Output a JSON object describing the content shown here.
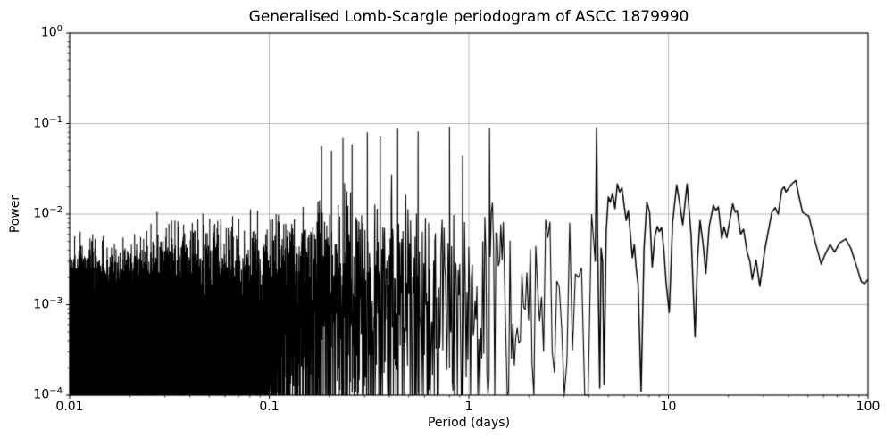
{
  "chart_data": {
    "type": "line",
    "title": "Generalised Lomb-Scargle periodogram of ASCC 1879990",
    "xlabel": "Period (days)",
    "ylabel": "Power",
    "xscale": "log",
    "yscale": "log",
    "xlim": [
      0.01,
      100
    ],
    "ylim": [
      0.0001,
      1
    ],
    "grid": true,
    "legend": "none",
    "line_color": "#000000",
    "grid_color": "#b0b0b0",
    "background_color": "#ffffff",
    "text_color": "#000000",
    "x_ticks": [
      {
        "value": 0.01,
        "label": "0.01"
      },
      {
        "value": 0.1,
        "label": "0.1"
      },
      {
        "value": 1,
        "label": "1"
      },
      {
        "value": 10,
        "label": "10"
      },
      {
        "value": 100,
        "label": "100"
      }
    ],
    "y_ticks": [
      {
        "value": 1,
        "base": "10",
        "exp": "0"
      },
      {
        "value": 0.1,
        "base": "10",
        "exp": "−1"
      },
      {
        "value": 0.01,
        "base": "10",
        "exp": "−2"
      },
      {
        "value": 0.001,
        "base": "10",
        "exp": "−3"
      },
      {
        "value": 0.0001,
        "base": "10",
        "exp": "−4"
      }
    ],
    "noise_region": {
      "description": "Unresolved dense periodogram noise, sampled uniformly in frequency from period_min to period_max; power = envelope * sin^2(random phase) * exponential deviate, clipped at ylim",
      "period_min": 0.01,
      "period_max": 4.3,
      "samples": 10000,
      "seed": 20,
      "mean_envelope": [
        [
          0.01,
          0.0011
        ],
        [
          0.015,
          0.00095
        ],
        [
          0.02,
          0.0012
        ],
        [
          0.03,
          0.0015
        ],
        [
          0.05,
          0.0018
        ],
        [
          0.07,
          0.002
        ],
        [
          0.1,
          0.0026
        ],
        [
          0.15,
          0.0034
        ],
        [
          0.25,
          0.0044
        ],
        [
          0.4,
          0.0048
        ],
        [
          0.7,
          0.0048
        ],
        [
          1.0,
          0.0046
        ],
        [
          2.0,
          0.0045
        ],
        [
          4.3,
          0.0045
        ]
      ]
    },
    "peaks": [
      [
        0.183,
        0.056
      ],
      [
        0.205,
        0.05
      ],
      [
        0.234,
        0.069
      ],
      [
        0.26,
        0.059
      ],
      [
        0.31,
        0.08
      ],
      [
        0.36,
        0.072
      ],
      [
        0.44,
        0.088
      ],
      [
        0.557,
        0.082
      ],
      [
        0.8,
        0.093
      ],
      [
        0.93,
        0.044
      ],
      [
        1.27,
        0.089
      ]
    ],
    "resolved_curve": [
      [
        4.3,
        0.003
      ],
      [
        4.34,
        0.02
      ],
      [
        4.37,
        0.09
      ],
      [
        4.41,
        0.008
      ],
      [
        4.46,
        0.0012
      ],
      [
        4.53,
        0.00012
      ],
      [
        4.6,
        0.0042
      ],
      [
        4.68,
        0.003
      ],
      [
        4.76,
        0.00013
      ],
      [
        4.88,
        0.0065
      ],
      [
        5.0,
        0.0155
      ],
      [
        5.12,
        0.0135
      ],
      [
        5.25,
        0.017
      ],
      [
        5.4,
        0.0115
      ],
      [
        5.55,
        0.0215
      ],
      [
        5.7,
        0.0175
      ],
      [
        5.85,
        0.0195
      ],
      [
        6.0,
        0.0125
      ],
      [
        6.15,
        0.0085
      ],
      [
        6.3,
        0.011
      ],
      [
        6.45,
        0.006
      ],
      [
        6.6,
        0.0033
      ],
      [
        6.75,
        0.0046
      ],
      [
        6.9,
        0.0025
      ],
      [
        7.05,
        0.0017
      ],
      [
        7.3,
        0.00011
      ],
      [
        7.55,
        0.0042
      ],
      [
        7.8,
        0.0135
      ],
      [
        8.05,
        0.0105
      ],
      [
        8.3,
        0.0026
      ],
      [
        8.55,
        0.0056
      ],
      [
        8.8,
        0.0073
      ],
      [
        9.0,
        0.0064
      ],
      [
        9.25,
        0.0071
      ],
      [
        9.5,
        0.0039
      ],
      [
        9.75,
        0.0017
      ],
      [
        10.1,
        0.00082
      ],
      [
        10.5,
        0.0082
      ],
      [
        11.0,
        0.021
      ],
      [
        11.4,
        0.013
      ],
      [
        11.8,
        0.0076
      ],
      [
        12.4,
        0.0215
      ],
      [
        13.0,
        0.0058
      ],
      [
        13.6,
        0.00044
      ],
      [
        14.0,
        0.0032
      ],
      [
        14.4,
        0.0085
      ],
      [
        14.9,
        0.0048
      ],
      [
        15.4,
        0.0022
      ],
      [
        16.0,
        0.0072
      ],
      [
        16.8,
        0.0125
      ],
      [
        17.3,
        0.011
      ],
      [
        17.8,
        0.012
      ],
      [
        18.5,
        0.0054
      ],
      [
        19.0,
        0.0072
      ],
      [
        19.6,
        0.0055
      ],
      [
        20.4,
        0.009
      ],
      [
        21.0,
        0.013
      ],
      [
        21.6,
        0.0105
      ],
      [
        22.1,
        0.011
      ],
      [
        23.0,
        0.006
      ],
      [
        23.8,
        0.0068
      ],
      [
        24.8,
        0.0038
      ],
      [
        25.6,
        0.003
      ],
      [
        26.3,
        0.0019
      ],
      [
        27.5,
        0.0031
      ],
      [
        28.7,
        0.0016
      ],
      [
        30.5,
        0.0042
      ],
      [
        33.0,
        0.0105
      ],
      [
        34.3,
        0.0118
      ],
      [
        35.5,
        0.01
      ],
      [
        37.0,
        0.0185
      ],
      [
        38.0,
        0.02
      ],
      [
        38.8,
        0.0175
      ],
      [
        39.8,
        0.019
      ],
      [
        41.5,
        0.0215
      ],
      [
        43.5,
        0.0235
      ],
      [
        45.0,
        0.016
      ],
      [
        47.0,
        0.0105
      ],
      [
        50.5,
        0.0095
      ],
      [
        54.0,
        0.0052
      ],
      [
        58.3,
        0.0028
      ],
      [
        61.0,
        0.0036
      ],
      [
        64.6,
        0.0046
      ],
      [
        68.0,
        0.0038
      ],
      [
        72.0,
        0.0048
      ],
      [
        77.4,
        0.0053
      ],
      [
        82.0,
        0.0042
      ],
      [
        87.0,
        0.0028
      ],
      [
        92.5,
        0.0018
      ],
      [
        96.0,
        0.0017
      ],
      [
        100.0,
        0.0019
      ]
    ]
  }
}
